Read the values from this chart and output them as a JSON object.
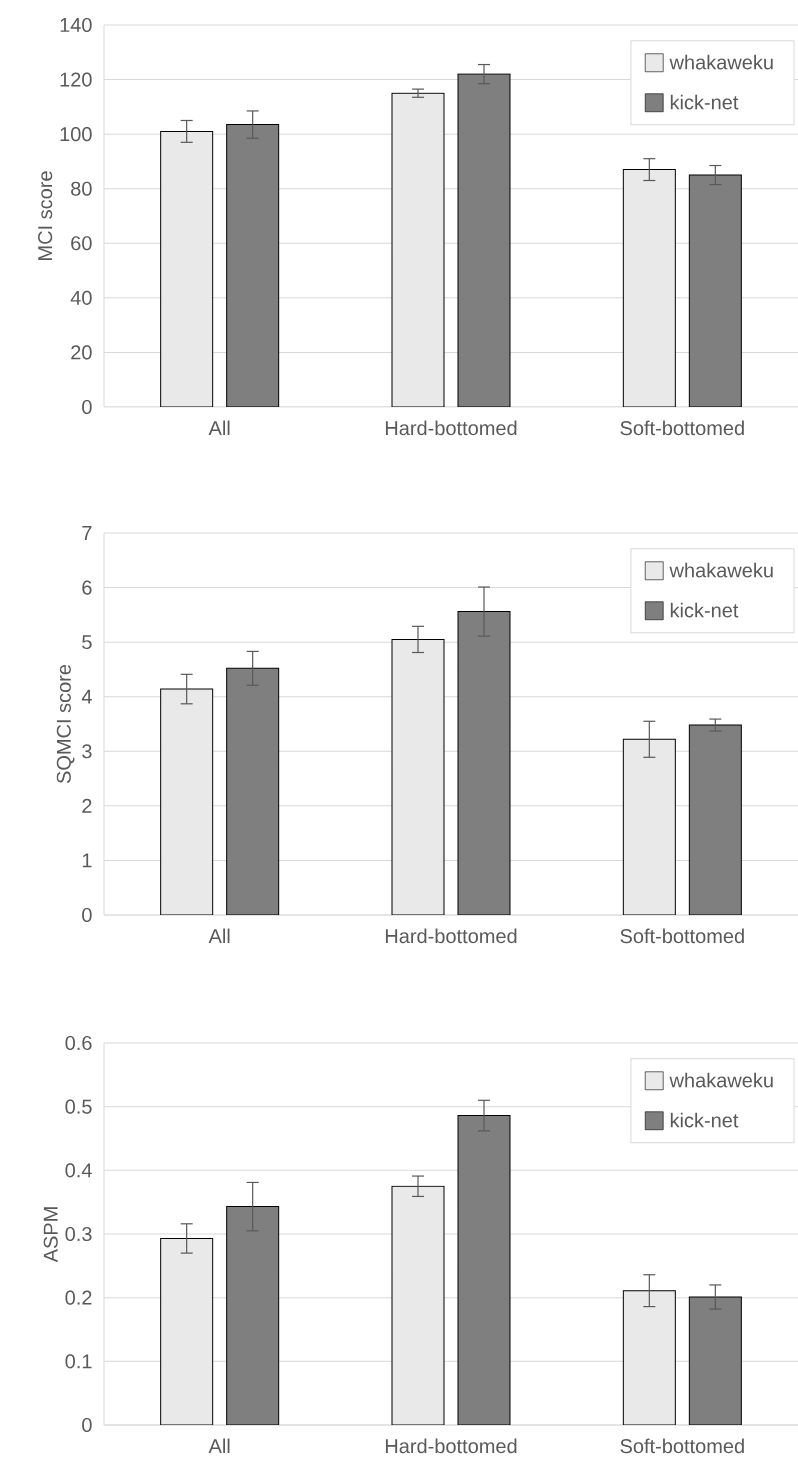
{
  "chart_data": [
    {
      "type": "bar",
      "ylabel": "MCI score",
      "categories": [
        "All",
        "Hard-bottomed",
        "Soft-bottomed"
      ],
      "ylim": [
        0,
        140
      ],
      "yticks": [
        0,
        20,
        40,
        60,
        80,
        100,
        120,
        140
      ],
      "grid": "y",
      "legend": "top right",
      "series": [
        {
          "name": "whakaweku",
          "color": "#e9e9e9",
          "values": [
            101,
            115,
            87
          ],
          "errors": [
            4,
            1.5,
            4
          ]
        },
        {
          "name": "kick-net",
          "color": "#7f7f7f",
          "values": [
            103.5,
            122,
            85
          ],
          "errors": [
            5,
            3.5,
            3.5
          ]
        }
      ]
    },
    {
      "type": "bar",
      "ylabel": "SQMCI score",
      "categories": [
        "All",
        "Hard-bottomed",
        "Soft-bottomed"
      ],
      "ylim": [
        0,
        7
      ],
      "yticks": [
        0,
        1,
        2,
        3,
        4,
        5,
        6,
        7
      ],
      "grid": "y",
      "legend": "top right",
      "series": [
        {
          "name": "whakaweku",
          "color": "#e9e9e9",
          "values": [
            4.14,
            5.05,
            3.22
          ],
          "errors": [
            0.27,
            0.24,
            0.33
          ]
        },
        {
          "name": "kick-net",
          "color": "#7f7f7f",
          "values": [
            4.52,
            5.56,
            3.48
          ],
          "errors": [
            0.31,
            0.45,
            0.11
          ]
        }
      ]
    },
    {
      "type": "bar",
      "ylabel": "ASPM",
      "categories": [
        "All",
        "Hard-bottomed",
        "Soft-bottomed"
      ],
      "ylim": [
        0,
        0.6
      ],
      "yticks": [
        0,
        0.1,
        0.2,
        0.3,
        0.4,
        0.5,
        0.6
      ],
      "grid": "y",
      "legend": "top right",
      "series": [
        {
          "name": "whakaweku",
          "color": "#e9e9e9",
          "values": [
            0.293,
            0.375,
            0.211
          ],
          "errors": [
            0.023,
            0.016,
            0.025
          ]
        },
        {
          "name": "kick-net",
          "color": "#7f7f7f",
          "values": [
            0.343,
            0.486,
            0.201
          ],
          "errors": [
            0.038,
            0.024,
            0.019
          ]
        }
      ]
    }
  ]
}
